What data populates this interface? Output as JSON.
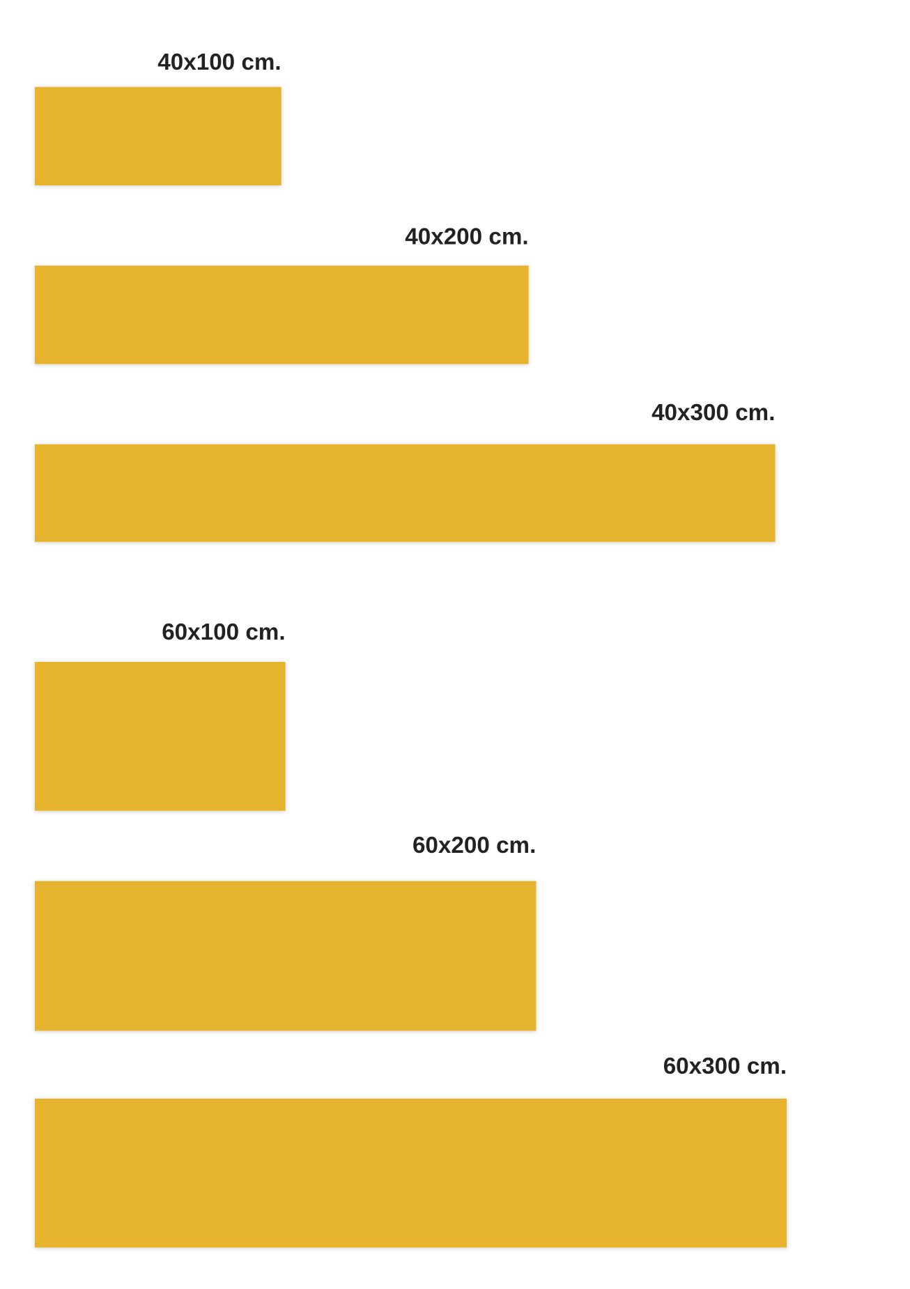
{
  "items": [
    {
      "label": "40x100 cm."
    },
    {
      "label": "40x200 cm."
    },
    {
      "label": "40x300 cm."
    },
    {
      "label": "60x100 cm."
    },
    {
      "label": "60x200 cm."
    },
    {
      "label": "60x300 cm."
    }
  ]
}
